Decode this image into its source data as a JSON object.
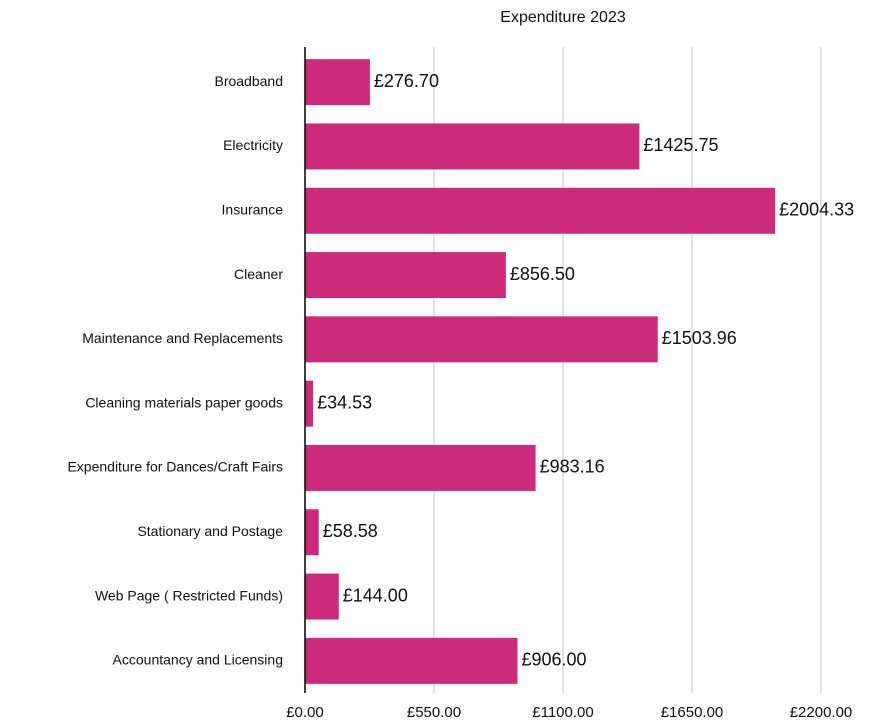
{
  "chart_data": {
    "type": "hbar",
    "title": "Expenditure 2023",
    "categories": [
      "Broadband",
      "Electricity",
      "Insurance",
      "Cleaner",
      "Maintenance and Replacements",
      "Cleaning materials paper goods",
      "Expenditure for Dances/Craft Fairs",
      "Stationary and Postage",
      "Web Page ( Restricted Funds)",
      "Accountancy and Licensing"
    ],
    "values": [
      276.7,
      1425.75,
      2004.33,
      856.5,
      1503.96,
      34.53,
      983.16,
      58.58,
      144.0,
      906.0
    ],
    "value_labels": [
      "£276.70",
      "£1425.75",
      "£2004.33",
      "£856.50",
      "£1503.96",
      "£34.53",
      "£983.16",
      "£58.58",
      "£144.00",
      "£906.00"
    ],
    "color": "#cc2b7a",
    "xlim": [
      0,
      2200
    ],
    "xticks": [
      {
        "value": 0,
        "label": "£0.00"
      },
      {
        "value": 550,
        "label": "£550.00"
      },
      {
        "value": 1100,
        "label": "£1100.00"
      },
      {
        "value": 1650,
        "label": "£1650.00"
      },
      {
        "value": 2200,
        "label": "£2200.00"
      }
    ],
    "grid": true
  }
}
